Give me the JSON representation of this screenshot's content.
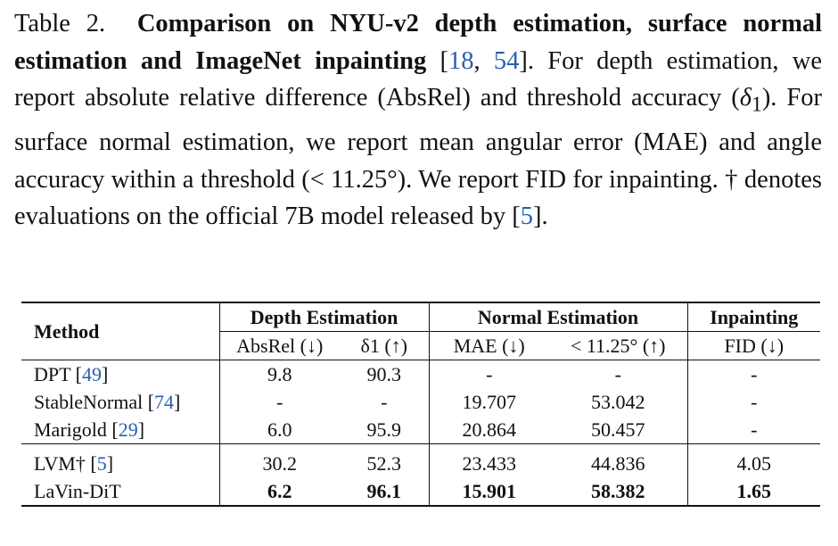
{
  "caption": {
    "label": "Table 2.",
    "bold_title": "Comparison on NYU-v2 depth estimation, surface normal estimation and ImageNet inpainting",
    "cite_open": "[",
    "cite_1": "18",
    "cite_sep": ", ",
    "cite_2": "54",
    "cite_close": "].",
    "text_1": "For depth estimation, we report absolute relative difference (AbsRel) and threshold accuracy (",
    "delta": "δ",
    "delta_sub": "1",
    "text_2": "). For surface normal estimation, we report mean angular error (MAE) and angle accuracy within a threshold (< 11.25°). We report FID for inpainting. † denotes evaluations on the official 7B model released by [",
    "cite_3": "5",
    "text_3": "]."
  },
  "table": {
    "header_method": "Method",
    "groups": [
      "Depth Estimation",
      "Normal Estimation",
      "Inpainting"
    ],
    "subheaders": [
      "AbsRel (↓)",
      "δ1 (↑)",
      "MAE (↓)",
      "< 11.25° (↑)",
      "FID (↓)"
    ],
    "rows": [
      {
        "name": "DPT ",
        "cite": "[49]",
        "cite_num": "49",
        "values": [
          "9.8",
          "90.3",
          "-",
          "-",
          "-"
        ]
      },
      {
        "name": "StableNormal ",
        "cite": "[74]",
        "cite_num": "74",
        "values": [
          "-",
          "-",
          "19.707",
          "53.042",
          "-"
        ]
      },
      {
        "name": "Marigold ",
        "cite": "[29]",
        "cite_num": "29",
        "values": [
          "6.0",
          "95.9",
          "20.864",
          "50.457",
          "-"
        ]
      },
      {
        "name": "LVM† ",
        "cite": "[5]",
        "cite_num": "5",
        "values": [
          "30.2",
          "52.3",
          "23.433",
          "44.836",
          "4.05"
        ]
      },
      {
        "name": "LaVin-DiT",
        "cite": "",
        "cite_num": "",
        "values": [
          "6.2",
          "96.1",
          "15.901",
          "58.382",
          "1.65"
        ]
      }
    ]
  }
}
